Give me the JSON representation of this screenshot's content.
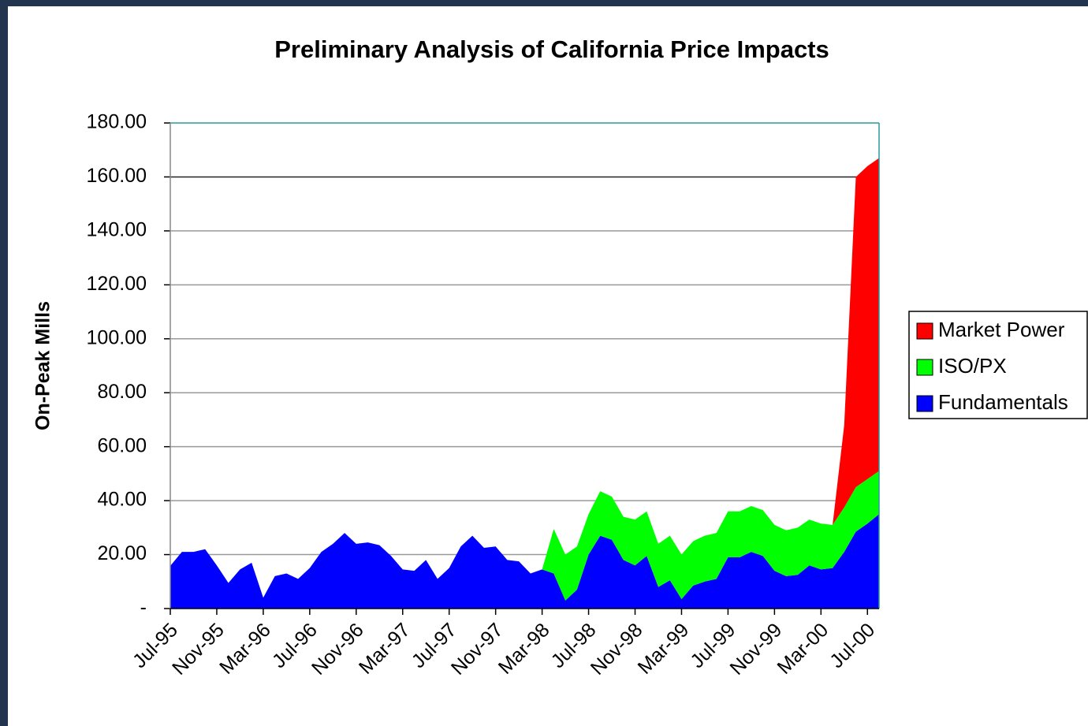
{
  "chart_data": {
    "type": "stacked_area",
    "title": "Preliminary Analysis of California Price Impacts",
    "y_label": "On-Peak Mills",
    "categories": [
      "Jul-95",
      null,
      null,
      null,
      "Nov-95",
      null,
      null,
      null,
      "Mar-96",
      null,
      null,
      null,
      "Jul-96",
      null,
      null,
      null,
      "Nov-96",
      null,
      null,
      null,
      "Mar-97",
      null,
      null,
      null,
      "Jul-97",
      null,
      null,
      null,
      "Nov-97",
      null,
      null,
      null,
      "Mar-98",
      null,
      null,
      null,
      "Jul-98",
      null,
      null,
      null,
      "Nov-98",
      null,
      null,
      null,
      "Mar-99",
      null,
      null,
      null,
      "Jul-99",
      null,
      null,
      null,
      "Nov-99",
      null,
      null,
      null,
      "Mar-00",
      null,
      null,
      null,
      "Jul-00",
      null
    ],
    "series": [
      {
        "name": "Fundamentals",
        "color": "#0000ff",
        "values": [
          15.8,
          21,
          21,
          22,
          16,
          9.5,
          14.5,
          17,
          4,
          12,
          13,
          11,
          15,
          21,
          24,
          28,
          24,
          24.5,
          23.5,
          19.5,
          14.5,
          14,
          18,
          11,
          15,
          23,
          27,
          22.5,
          23,
          18,
          17.5,
          13,
          14.5,
          13,
          3,
          7,
          20,
          27,
          25.5,
          18,
          16,
          19.5,
          8,
          10.5,
          3.5,
          8.5,
          10,
          11,
          19,
          19,
          21,
          19.5,
          14,
          12,
          12.5,
          16,
          14.5,
          15,
          21,
          28.5,
          31.5,
          35
        ]
      },
      {
        "name": "ISO/PX",
        "color": "#00ff00",
        "values": [
          0,
          0,
          0,
          0,
          0,
          0,
          0,
          0,
          0,
          0,
          0,
          0,
          0,
          0,
          0,
          0,
          0,
          0,
          0,
          0,
          0,
          0,
          0,
          0,
          0,
          0,
          0,
          0,
          0,
          0,
          0,
          0,
          0,
          16.5,
          17,
          16,
          15,
          16.5,
          16,
          16,
          17,
          16.5,
          16,
          16.5,
          16.5,
          16.5,
          17,
          17,
          17,
          17,
          17,
          17,
          17,
          17,
          17.5,
          17,
          17,
          16,
          16.5,
          16.5,
          16.5,
          16
        ]
      },
      {
        "name": "Market Power",
        "color": "#ff0000",
        "values": [
          0,
          0,
          0,
          0,
          0,
          0,
          0,
          0,
          0,
          0,
          0,
          0,
          0,
          0,
          0,
          0,
          0,
          0,
          0,
          0,
          0,
          0,
          0,
          0,
          0,
          0,
          0,
          0,
          0,
          0,
          0,
          0,
          0,
          0,
          0,
          0,
          0,
          0,
          0,
          0,
          0,
          0,
          0,
          0,
          0,
          0,
          0,
          0,
          0,
          0,
          0,
          0,
          0,
          0,
          0,
          0,
          0,
          0,
          30.5,
          115,
          116,
          116
        ]
      }
    ],
    "ylim": [
      0,
      180
    ],
    "yticks": [
      {
        "value": 0,
        "label": "-"
      },
      {
        "value": 20,
        "label": "20.00"
      },
      {
        "value": 40,
        "label": "40.00"
      },
      {
        "value": 60,
        "label": "60.00"
      },
      {
        "value": 80,
        "label": "80.00"
      },
      {
        "value": 100,
        "label": "100.00"
      },
      {
        "value": 120,
        "label": "120.00"
      },
      {
        "value": 140,
        "label": "140.00"
      },
      {
        "value": 160,
        "label": "160.00"
      },
      {
        "value": 180,
        "label": "180.00"
      }
    ],
    "grid": true,
    "legend": "right"
  }
}
